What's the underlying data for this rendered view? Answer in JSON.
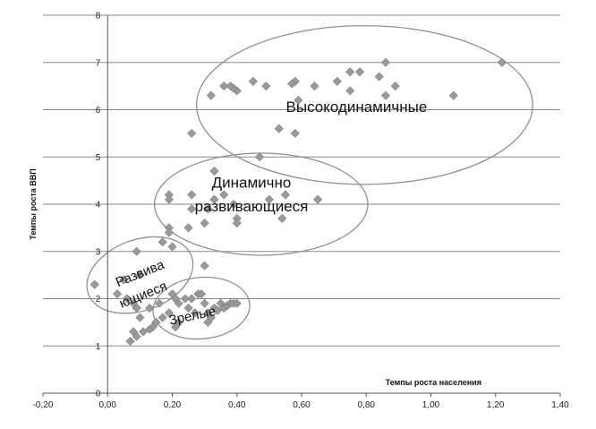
{
  "chart_data": {
    "type": "scatter",
    "title": "",
    "xlabel": "Темпы роста населения",
    "ylabel": "Темпы роста ВВП",
    "xlim": [
      -0.2,
      1.4
    ],
    "ylim": [
      0,
      8
    ],
    "x_tick_labels": [
      "-0,20",
      "0,00",
      "0,20",
      "0,40",
      "0,60",
      "0,80",
      "1,00",
      "1,20",
      "1,40"
    ],
    "y_tick_labels": [
      "0",
      "1",
      "2",
      "3",
      "4",
      "5",
      "6",
      "7",
      "8"
    ],
    "grid": "horizontal",
    "point_color": "#9a9a9a",
    "clusters": [
      {
        "label": "Высокодинамичные"
      },
      {
        "label_lines": [
          "Динамично",
          "развивающиеся"
        ]
      },
      {
        "label_lines": [
          "Развива",
          "ющиеся"
        ]
      },
      {
        "label": "Зрелые"
      }
    ],
    "series": [
      {
        "points": [
          [
            1.22,
            7.0
          ],
          [
            1.07,
            6.3
          ],
          [
            0.86,
            7.0
          ],
          [
            0.89,
            6.5
          ],
          [
            0.86,
            6.3
          ],
          [
            0.84,
            6.7
          ],
          [
            0.78,
            6.8
          ],
          [
            0.75,
            6.8
          ],
          [
            0.75,
            6.4
          ],
          [
            0.71,
            6.6
          ],
          [
            0.64,
            6.5
          ],
          [
            0.59,
            6.2
          ],
          [
            0.58,
            6.6
          ],
          [
            0.57,
            6.55
          ],
          [
            0.49,
            6.5
          ],
          [
            0.45,
            6.6
          ],
          [
            0.4,
            6.4
          ],
          [
            0.39,
            6.45
          ],
          [
            0.38,
            6.5
          ],
          [
            0.36,
            6.5
          ],
          [
            0.32,
            6.3
          ],
          [
            0.53,
            5.6
          ],
          [
            0.58,
            5.5
          ],
          [
            0.26,
            5.5
          ],
          [
            0.47,
            5.0
          ],
          [
            0.33,
            4.7
          ],
          [
            0.65,
            4.1
          ],
          [
            0.55,
            4.2
          ],
          [
            0.5,
            4.1
          ],
          [
            0.54,
            3.7
          ],
          [
            0.39,
            4.0
          ],
          [
            0.4,
            3.7
          ],
          [
            0.4,
            3.6
          ],
          [
            0.36,
            4.2
          ],
          [
            0.33,
            4.1
          ],
          [
            0.31,
            3.9
          ],
          [
            0.3,
            3.6
          ],
          [
            0.26,
            4.2
          ],
          [
            0.26,
            3.9
          ],
          [
            0.25,
            3.5
          ],
          [
            0.19,
            4.2
          ],
          [
            0.19,
            4.1
          ],
          [
            0.19,
            3.5
          ],
          [
            0.19,
            3.4
          ],
          [
            0.17,
            3.2
          ],
          [
            0.2,
            3.1
          ],
          [
            0.3,
            2.7
          ],
          [
            0.09,
            3.0
          ],
          [
            0.05,
            2.4
          ],
          [
            0.1,
            2.5
          ],
          [
            0.03,
            2.1
          ],
          [
            -0.04,
            2.3
          ],
          [
            0.06,
            2.0
          ],
          [
            0.08,
            1.9
          ],
          [
            0.09,
            1.8
          ],
          [
            0.1,
            1.6
          ],
          [
            0.13,
            1.8
          ],
          [
            0.16,
            1.9
          ],
          [
            0.2,
            2.1
          ],
          [
            0.21,
            2.0
          ],
          [
            0.22,
            1.9
          ],
          [
            0.24,
            2.0
          ],
          [
            0.25,
            1.8
          ],
          [
            0.26,
            2.0
          ],
          [
            0.27,
            1.7
          ],
          [
            0.28,
            2.1
          ],
          [
            0.29,
            2.1
          ],
          [
            0.3,
            1.9
          ],
          [
            0.31,
            1.7
          ],
          [
            0.32,
            1.6
          ],
          [
            0.33,
            1.8
          ],
          [
            0.34,
            1.75
          ],
          [
            0.35,
            1.9
          ],
          [
            0.36,
            1.8
          ],
          [
            0.37,
            1.85
          ],
          [
            0.38,
            1.9
          ],
          [
            0.39,
            1.9
          ],
          [
            0.4,
            1.9
          ],
          [
            0.31,
            1.5
          ],
          [
            0.21,
            1.4
          ],
          [
            0.22,
            1.5
          ],
          [
            0.14,
            1.4
          ],
          [
            0.13,
            1.35
          ],
          [
            0.11,
            1.3
          ],
          [
            0.08,
            1.3
          ],
          [
            0.07,
            1.1
          ],
          [
            0.09,
            1.2
          ],
          [
            0.19,
            1.7
          ],
          [
            0.17,
            1.6
          ],
          [
            0.15,
            1.5
          ]
        ]
      }
    ]
  }
}
